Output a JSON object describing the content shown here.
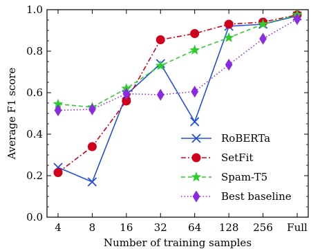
{
  "chart_data": {
    "type": "line",
    "xlabel": "Number of training samples",
    "ylabel": "Average F1 score",
    "categories": [
      "4",
      "8",
      "16",
      "32",
      "64",
      "128",
      "256",
      "Full"
    ],
    "ylim": [
      0.0,
      1.0
    ],
    "yticks": [
      "0.0",
      "0.2",
      "0.4",
      "0.6",
      "0.8",
      "1.0"
    ],
    "grid": false,
    "legend_position": "bottom-right",
    "series": [
      {
        "name": "RoBERTa",
        "values": [
          0.24,
          0.17,
          0.59,
          0.74,
          0.46,
          0.92,
          0.93,
          0.97
        ],
        "color": "#1f4fe0",
        "line_style": "solid",
        "marker": "x"
      },
      {
        "name": "SetFit",
        "values": [
          0.215,
          0.34,
          0.56,
          0.855,
          0.885,
          0.93,
          0.94,
          0.975
        ],
        "color": "#d0021b",
        "line_style": "dashdot",
        "marker": "circle"
      },
      {
        "name": "Spam-T5",
        "values": [
          0.545,
          0.53,
          0.62,
          0.73,
          0.805,
          0.865,
          0.93,
          0.975
        ],
        "color": "#2ecc2e",
        "line_style": "dashed",
        "marker": "star"
      },
      {
        "name": "Best baseline",
        "values": [
          0.515,
          0.52,
          0.595,
          0.59,
          0.605,
          0.735,
          0.86,
          0.955
        ],
        "color": "#8a2be2",
        "line_style": "dotted",
        "marker": "diamond"
      }
    ]
  }
}
